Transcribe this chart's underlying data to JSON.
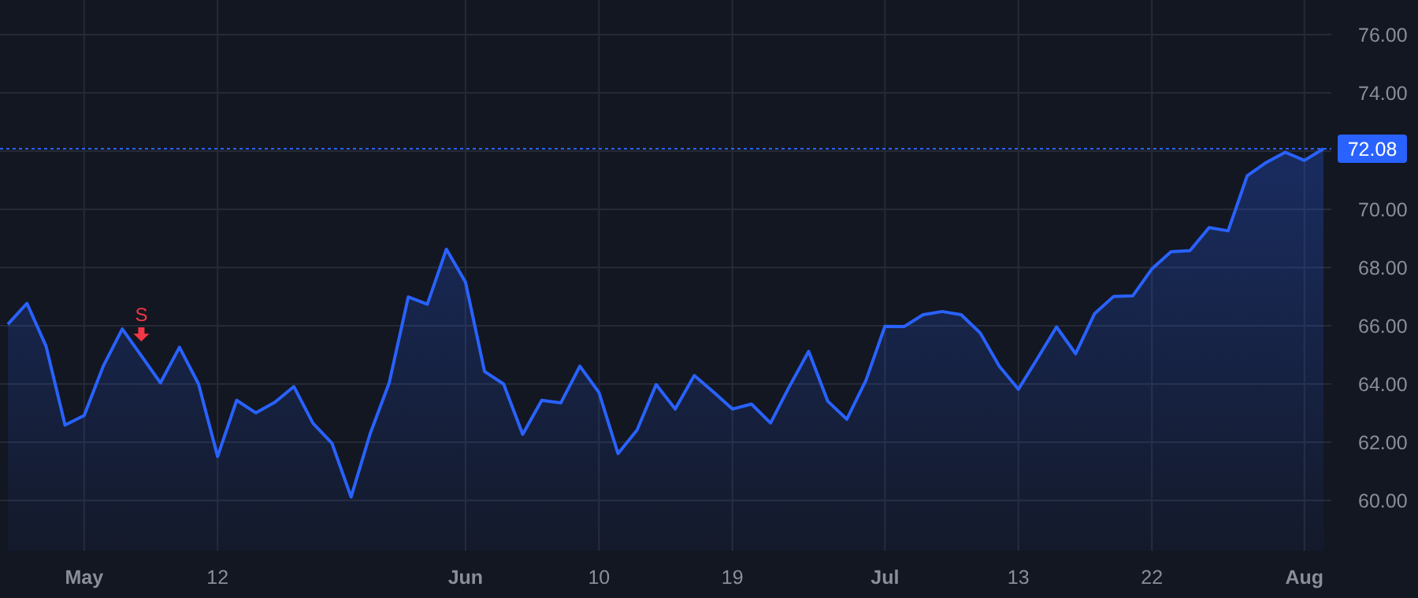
{
  "chart_data": {
    "type": "area",
    "categories": [
      null,
      null,
      null,
      null,
      "May",
      null,
      null,
      null,
      null,
      null,
      null,
      "12",
      null,
      null,
      null,
      null,
      null,
      null,
      null,
      null,
      null,
      null,
      null,
      null,
      "Jun",
      null,
      null,
      null,
      null,
      null,
      null,
      "10",
      null,
      null,
      null,
      null,
      null,
      null,
      "19",
      null,
      null,
      null,
      null,
      null,
      null,
      null,
      "Jul",
      null,
      null,
      null,
      null,
      null,
      null,
      "13",
      null,
      null,
      null,
      null,
      null,
      null,
      "22",
      null,
      null,
      null,
      null,
      null,
      null,
      null,
      "Aug",
      null
    ],
    "series": [
      {
        "color": "#2962ff",
        "values": [
          66.05,
          66.77,
          65.3,
          62.59,
          62.92,
          64.61,
          65.89,
          64.97,
          64.04,
          65.26,
          64.0,
          61.51,
          63.44,
          63.01,
          63.37,
          63.91,
          62.65,
          61.96,
          60.12,
          62.29,
          64.04,
          66.99,
          66.74,
          68.63,
          67.5,
          64.43,
          64.0,
          62.27,
          63.44,
          63.35,
          64.61,
          63.71,
          61.61,
          62.42,
          63.98,
          63.14,
          64.29,
          63.73,
          63.14,
          63.31,
          62.66,
          63.93,
          65.12,
          63.41,
          62.79,
          64.12,
          65.98,
          65.97,
          66.38,
          66.49,
          66.38,
          65.75,
          64.61,
          63.82,
          64.88,
          65.96,
          65.04,
          66.42,
          67.01,
          67.03,
          67.95,
          68.54,
          68.58,
          69.37,
          69.26,
          71.15,
          71.61,
          71.96,
          71.68,
          72.08
        ]
      }
    ],
    "ylim": [
      58.27,
      77.19
    ],
    "yticks": [
      {
        "value": 60,
        "label": "60.00"
      },
      {
        "value": 62,
        "label": "62.00"
      },
      {
        "value": 64,
        "label": "64.00"
      },
      {
        "value": 66,
        "label": "66.00"
      },
      {
        "value": 68,
        "label": "68.00"
      },
      {
        "value": 70,
        "label": "70.00"
      },
      {
        "value": 72,
        "label": null
      },
      {
        "value": 74,
        "label": "74.00"
      },
      {
        "value": 76,
        "label": "76.00"
      }
    ],
    "ref_lines": [
      {
        "axis": "y",
        "value": 72.08,
        "label": "72.08",
        "color": "#2962ff",
        "line_style": "dotted"
      }
    ],
    "annotations": [
      {
        "text": "S",
        "y": 64.97
      }
    ],
    "grid": true,
    "marker": "none",
    "line_style": "solid"
  }
}
